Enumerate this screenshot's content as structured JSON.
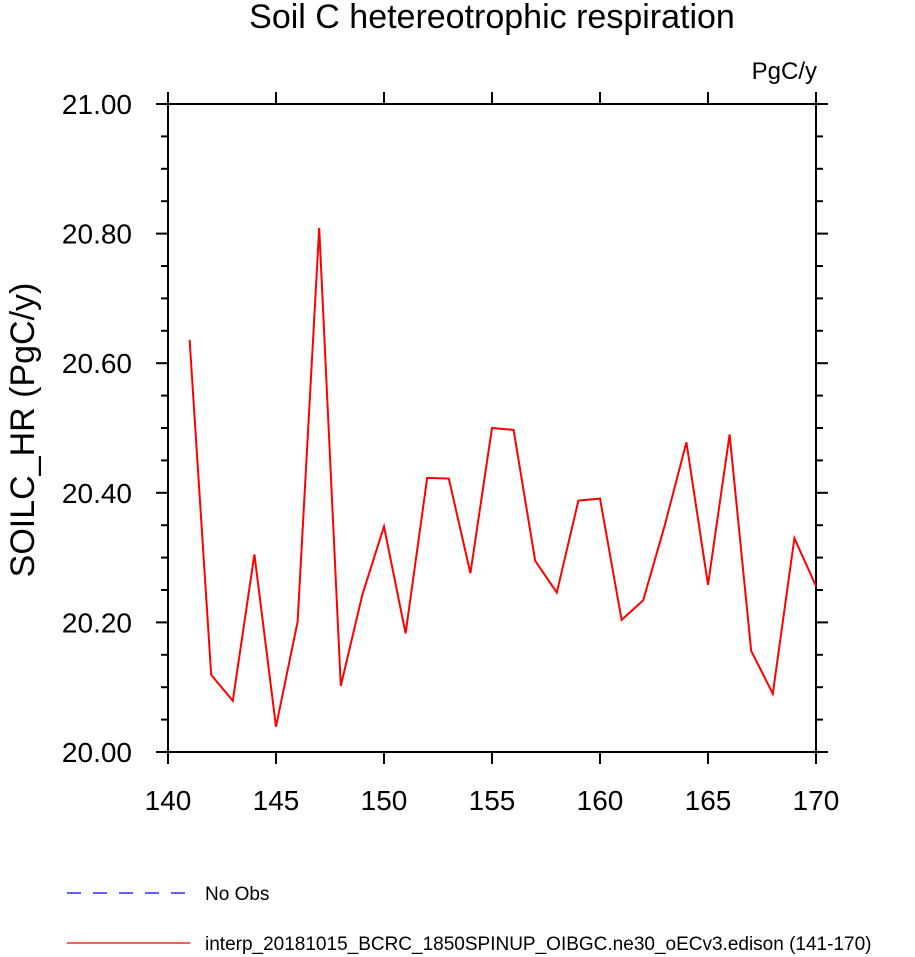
{
  "chart_data": {
    "type": "line",
    "title": "Soil C hetereotrophic respiration",
    "units_label": "PgC/y",
    "ylabel": "SOILC_HR  (PgC/y)",
    "xlabel": "",
    "xlim": [
      140,
      170
    ],
    "ylim": [
      20.0,
      21.0
    ],
    "x_ticks": [
      140,
      145,
      150,
      155,
      160,
      165,
      170
    ],
    "x_tick_labels": [
      "140",
      "145",
      "150",
      "155",
      "160",
      "165",
      "170"
    ],
    "y_ticks": [
      20.0,
      20.2,
      20.4,
      20.6,
      20.8,
      21.0
    ],
    "y_tick_labels": [
      "20.00",
      "20.20",
      "20.40",
      "20.60",
      "20.80",
      "21.00"
    ],
    "grid": false,
    "legend_position": "bottom",
    "series": [
      {
        "name": "interp_20181015_BCRC_1850SPINUP_OIBGC.ne30_oECv3.edison (141-170)",
        "color": "#ff0000",
        "dash": "solid",
        "x": [
          141,
          142,
          143,
          144,
          145,
          146,
          147,
          148,
          149,
          150,
          151,
          152,
          153,
          154,
          155,
          156,
          157,
          158,
          159,
          160,
          161,
          162,
          163,
          164,
          165,
          166,
          167,
          168,
          169,
          170
        ],
        "values": [
          20.636,
          20.119,
          20.079,
          20.305,
          20.039,
          20.201,
          20.809,
          20.102,
          20.243,
          20.348,
          20.183,
          20.423,
          20.422,
          20.276,
          20.5,
          20.497,
          20.295,
          20.246,
          20.388,
          20.391,
          20.204,
          20.234,
          20.35,
          20.478,
          20.258,
          20.49,
          20.156,
          20.09,
          20.33,
          20.256
        ]
      }
    ],
    "legend": [
      {
        "label": "No Obs",
        "color": "#0000ff",
        "dash": "dashed"
      },
      {
        "label": "interp_20181015_BCRC_1850SPINUP_OIBGC.ne30_oECv3.edison (141-170)",
        "color": "#ff0000",
        "dash": "solid"
      }
    ]
  }
}
